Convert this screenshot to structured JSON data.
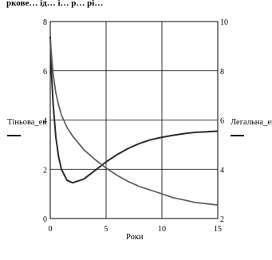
{
  "header_cut_text": "ркове… ід…  і… р… рі…",
  "chart_data": {
    "type": "line",
    "xlabel": "Роки",
    "ylabel_left": "Тіньова_ек",
    "ylabel_right": "Легальна_ек",
    "xlim": [
      0,
      15
    ],
    "ylim_left": [
      0,
      8
    ],
    "ylim_right": [
      2,
      10
    ],
    "x_ticks": [
      "0",
      "5",
      "10",
      "15"
    ],
    "y_ticks_left": [
      "0",
      "2",
      "4",
      "6",
      "8"
    ],
    "y_ticks_right": [
      "2",
      "4",
      "6",
      "8",
      "10"
    ],
    "grid": true,
    "series": [
      {
        "axis": "left",
        "color": "#2a2a2a",
        "x": [
          0,
          0.1,
          0.25,
          0.5,
          0.75,
          1,
          1.5,
          2,
          3,
          4,
          5,
          6,
          7,
          8,
          9,
          10,
          11,
          12,
          13,
          14,
          15
        ],
        "y": [
          7.4,
          6.0,
          4.7,
          3.3,
          2.5,
          2.0,
          1.55,
          1.45,
          1.6,
          1.95,
          2.3,
          2.6,
          2.85,
          3.05,
          3.2,
          3.3,
          3.38,
          3.45,
          3.5,
          3.52,
          3.55
        ]
      },
      {
        "axis": "right",
        "color": "#5a5a5a",
        "x": [
          0,
          0.1,
          0.25,
          0.5,
          0.75,
          1,
          1.5,
          2,
          3,
          4,
          5,
          6,
          7,
          8,
          9,
          10,
          11,
          12,
          13,
          14,
          15
        ],
        "y": [
          9.3,
          8.7,
          7.9,
          7.1,
          6.6,
          6.2,
          5.7,
          5.35,
          4.8,
          4.4,
          4.05,
          3.75,
          3.5,
          3.3,
          3.15,
          3.0,
          2.85,
          2.75,
          2.65,
          2.6,
          2.55
        ]
      }
    ]
  }
}
